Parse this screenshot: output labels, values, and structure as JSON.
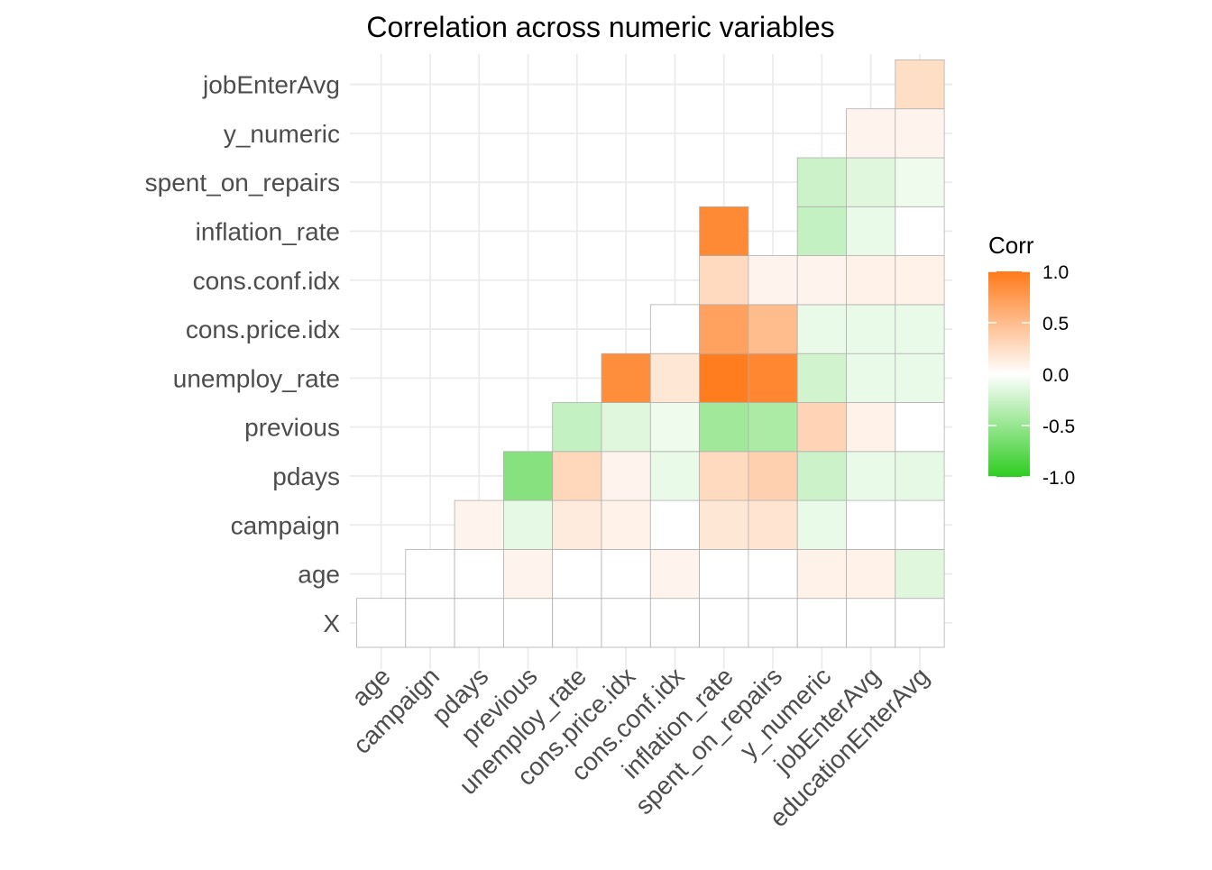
{
  "chart_data": {
    "type": "heatmap",
    "title": "Correlation across numeric variables",
    "x_categories": [
      "age",
      "campaign",
      "pdays",
      "previous",
      "unemploy_rate",
      "cons.price.idx",
      "cons.conf.idx",
      "inflation_rate",
      "spent_on_repairs",
      "y_numeric",
      "jobEnterAvg",
      "educationEnterAvg"
    ],
    "y_categories": [
      "X",
      "age",
      "campaign",
      "pdays",
      "previous",
      "unemploy_rate",
      "cons.price.idx",
      "cons.conf.idx",
      "inflation_rate",
      "spent_on_repairs",
      "y_numeric",
      "jobEnterAvg"
    ],
    "matrix": [
      [
        0.0,
        0.0,
        0.0,
        0.0,
        0.0,
        0.0,
        0.0,
        0.0,
        0.0,
        0.0,
        0.0,
        0.0
      ],
      [
        null,
        0.0,
        0.0,
        0.08,
        0.0,
        0.0,
        0.08,
        0.0,
        0.0,
        0.1,
        0.1,
        -0.15
      ],
      [
        null,
        null,
        0.08,
        -0.12,
        0.15,
        0.1,
        0.0,
        0.18,
        0.2,
        -0.1,
        0.0,
        0.0
      ],
      [
        null,
        null,
        null,
        -0.58,
        0.3,
        0.08,
        -0.1,
        0.28,
        0.35,
        -0.25,
        -0.1,
        -0.12
      ],
      [
        null,
        null,
        null,
        null,
        -0.28,
        -0.15,
        -0.08,
        -0.45,
        -0.4,
        0.32,
        0.1,
        0.0
      ],
      [
        null,
        null,
        null,
        null,
        null,
        0.85,
        0.18,
        0.98,
        0.9,
        -0.22,
        -0.1,
        -0.1
      ],
      [
        null,
        null,
        null,
        null,
        null,
        null,
        0.0,
        0.7,
        0.5,
        -0.1,
        -0.1,
        -0.1
      ],
      [
        null,
        null,
        null,
        null,
        null,
        null,
        null,
        0.28,
        0.08,
        0.08,
        0.1,
        0.1
      ],
      [
        null,
        null,
        null,
        null,
        null,
        null,
        null,
        0.88,
        null,
        -0.28,
        -0.1,
        0.0
      ],
      [
        null,
        null,
        null,
        null,
        null,
        null,
        null,
        null,
        null,
        -0.25,
        -0.15,
        -0.08
      ],
      [
        null,
        null,
        null,
        null,
        null,
        null,
        null,
        null,
        null,
        null,
        0.08,
        0.08
      ],
      [
        null,
        null,
        null,
        null,
        null,
        null,
        null,
        null,
        null,
        null,
        null,
        0.25
      ]
    ],
    "legend": {
      "title": "Corr",
      "ticks": [
        "1.0",
        "0.5",
        "0.0",
        "-0.5",
        "-1.0"
      ],
      "tick_values": [
        1.0,
        0.5,
        0.0,
        -0.5,
        -1.0
      ],
      "position": "right"
    },
    "colors": {
      "high": "#ff7a1a",
      "mid": "#ffffff",
      "low": "#2ecc21",
      "grid": "#ebebeb",
      "cell_border": "#b0b0b0"
    },
    "grid": true,
    "range": [
      -1,
      1
    ]
  }
}
